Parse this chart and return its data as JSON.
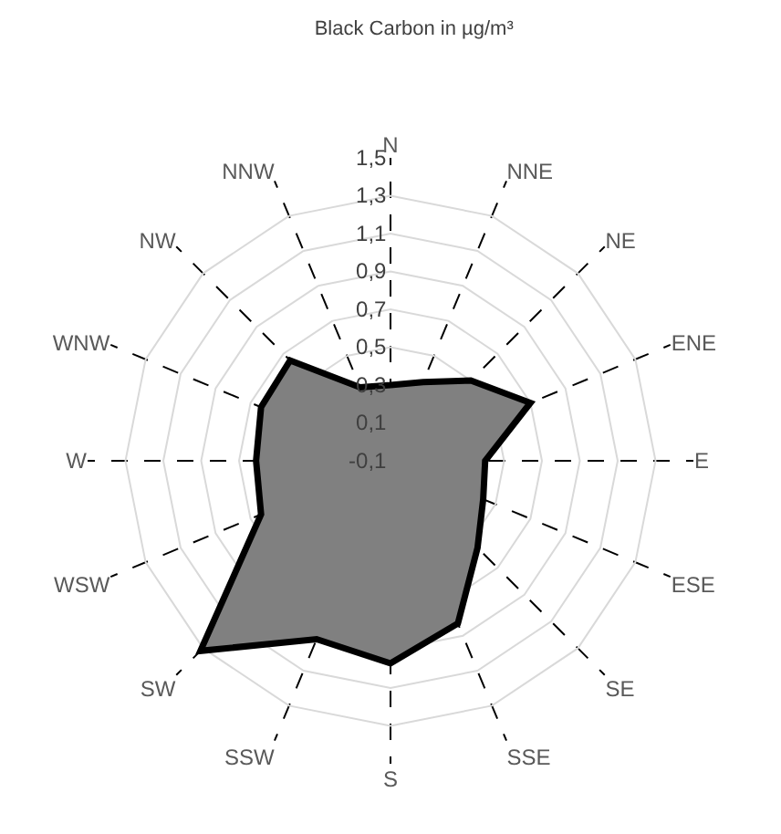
{
  "chart_data": {
    "type": "radar",
    "title": "Black Carbon in µg/m³",
    "categories": [
      "N",
      "NNE",
      "NE",
      "ENE",
      "E",
      "ESE",
      "SE",
      "SSE",
      "S",
      "SSW",
      "SW",
      "WSW",
      "W",
      "WNW",
      "NW",
      "NNW"
    ],
    "series": [
      {
        "color": "#808080",
        "values": [
          0.3,
          0.35,
          0.5,
          0.7,
          0.4,
          0.43,
          0.55,
          0.83,
          0.97,
          0.92,
          1.32,
          0.64,
          0.61,
          0.64,
          0.65,
          0.32
        ]
      }
    ],
    "ylim": [
      -0.1,
      1.5
    ],
    "yticks": [
      {
        "value": -0.1,
        "label": "-0,1"
      },
      {
        "value": 0.1,
        "label": "0,1"
      },
      {
        "value": 0.3,
        "label": "0,3"
      },
      {
        "value": 0.5,
        "label": "0,5"
      },
      {
        "value": 0.7,
        "label": "0,7"
      },
      {
        "value": 0.9,
        "label": "0,9"
      },
      {
        "value": 1.1,
        "label": "1,1"
      },
      {
        "value": 1.3,
        "label": "1,3"
      },
      {
        "value": 1.5,
        "label": "1,5"
      }
    ],
    "grid": true,
    "marker": "none"
  }
}
